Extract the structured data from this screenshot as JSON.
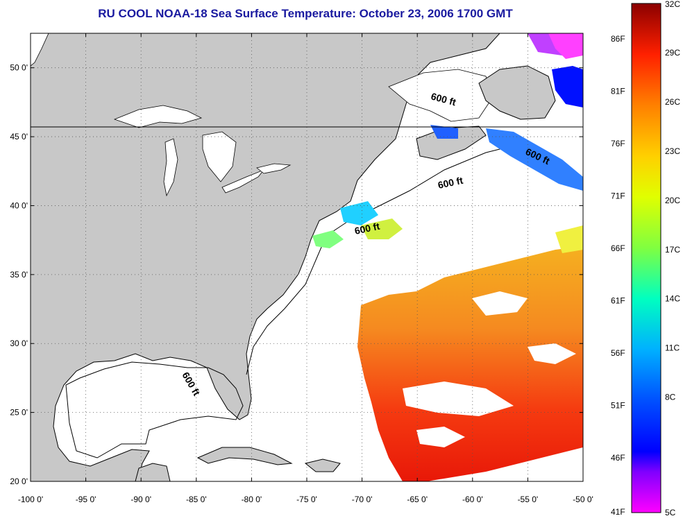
{
  "title": "RU COOL  NOAA-18  Sea Surface Temperature:  October 23, 2006 1700 GMT",
  "map": {
    "x_ticks": [
      "-100 0'",
      "-95 0'",
      "-90 0'",
      "-85 0'",
      "-80 0'",
      "-75 0'",
      "-70 0'",
      "-65 0'",
      "-60 0'",
      "-55 0'",
      "-50 0'"
    ],
    "y_ticks": [
      "50 0'",
      "45 0'",
      "40 0'",
      "35 0'",
      "30 0'",
      "25 0'",
      "20 0'"
    ],
    "lon_range": [
      -100,
      -50
    ],
    "lat_range": [
      20,
      52.5
    ],
    "grid": "dotted",
    "isobath_labels": [
      "600 ft",
      "600 ft",
      "600 ft",
      "600 ft",
      "600 ft"
    ],
    "land_color": "#c8c8c8",
    "water_color": "#ffffff"
  },
  "colorbar": {
    "celsius_labels": [
      "32C",
      "29C",
      "26C",
      "23C",
      "20C",
      "17C",
      "14C",
      "11C",
      "8C",
      "5C"
    ],
    "fahrenheit_labels": [
      "86F",
      "81F",
      "76F",
      "71F",
      "66F",
      "61F",
      "56F",
      "51F",
      "46F",
      "41F"
    ],
    "colors": [
      "#8b0000",
      "#ff2000",
      "#ff8000",
      "#ffd000",
      "#e0ff00",
      "#80ff40",
      "#00ffc0",
      "#00a0ff",
      "#0000ff",
      "#8000ff",
      "#ff00ff"
    ]
  }
}
